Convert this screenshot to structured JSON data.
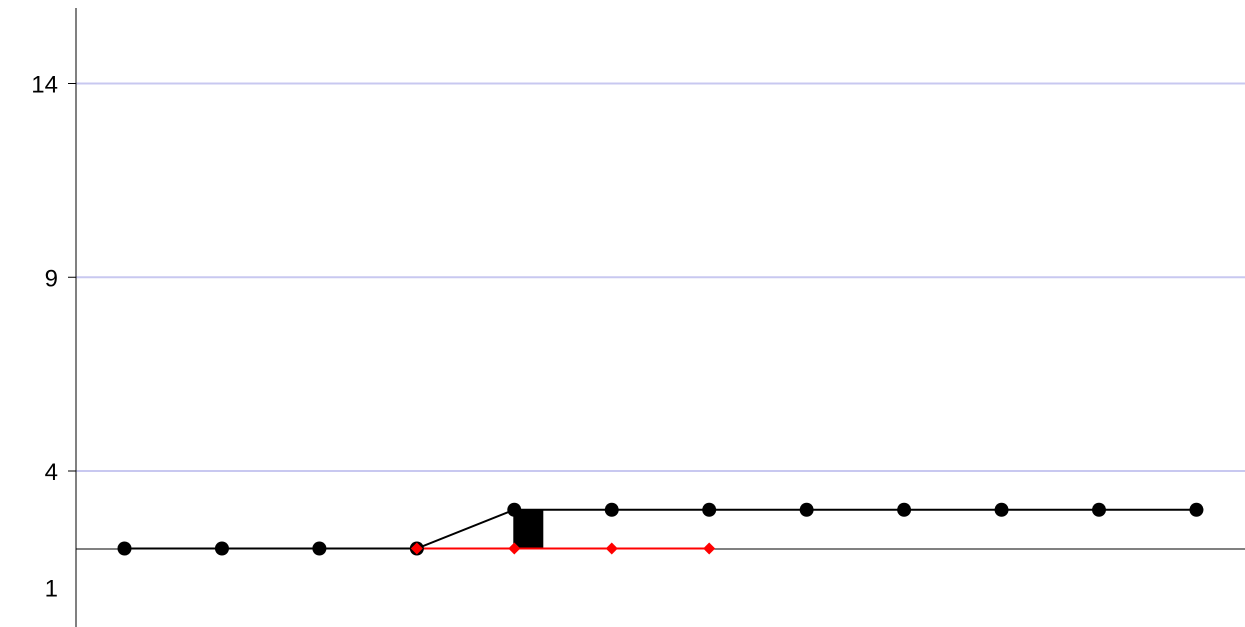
{
  "chart_data": {
    "type": "line",
    "x": [
      1,
      2,
      3,
      4,
      5,
      6,
      7,
      8,
      9,
      10,
      11,
      12
    ],
    "yticks": [
      1,
      4,
      9,
      14
    ],
    "ylim": [
      0,
      15
    ],
    "grid": true,
    "series": [
      {
        "color": "#000000",
        "marker": "circle",
        "values": [
          2,
          2,
          2,
          2,
          3,
          3,
          3,
          3,
          3,
          3,
          3,
          3
        ]
      },
      {
        "color": "#ff0000",
        "marker": "diamond",
        "x": [
          4,
          5,
          6,
          7
        ],
        "values": [
          2,
          2,
          2,
          2
        ]
      }
    ],
    "bars": [
      {
        "x": 5,
        "from": 2,
        "to": 3,
        "color": "#000000"
      }
    ],
    "colors": {
      "grid": "#c8c8f0",
      "axis": "#000000"
    }
  }
}
